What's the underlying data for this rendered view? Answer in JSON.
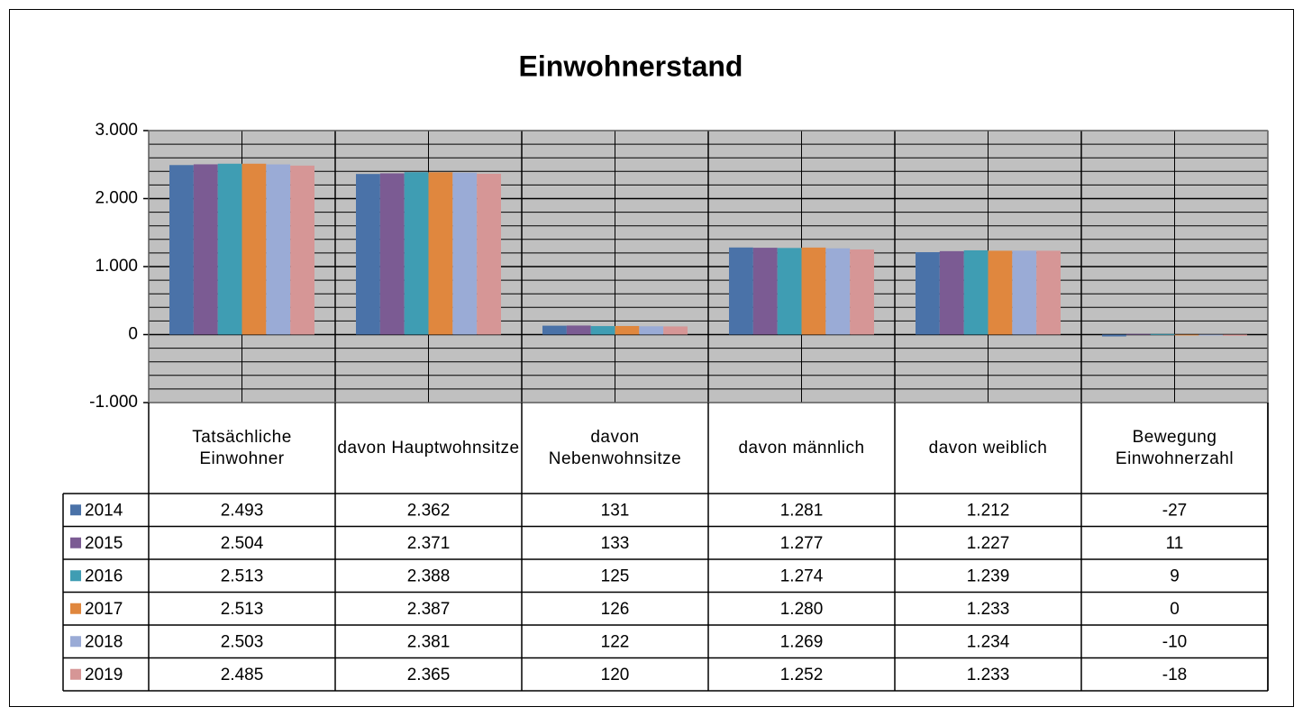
{
  "chart_data": {
    "type": "bar",
    "title": "Einwohnerstand",
    "categories": [
      "Tatsächliche Einwohner",
      "davon Hauptwohnsitze",
      "davon Nebenwohnsitze",
      "davon männlich",
      "davon weiblich",
      "Bewegung Einwohnerzahl"
    ],
    "series": [
      {
        "name": "2014",
        "color": "#4a72a8",
        "values": [
          2493,
          2362,
          131,
          1281,
          1212,
          -27
        ],
        "value_labels": [
          "2.493",
          "2.362",
          "131",
          "1.281",
          "1.212",
          "-27"
        ]
      },
      {
        "name": "2015",
        "color": "#7b5b93",
        "values": [
          2504,
          2371,
          133,
          1277,
          1227,
          11
        ],
        "value_labels": [
          "2.504",
          "2.371",
          "133",
          "1.277",
          "1.227",
          "11"
        ]
      },
      {
        "name": "2016",
        "color": "#3f9db3",
        "values": [
          2513,
          2388,
          125,
          1274,
          1239,
          9
        ],
        "value_labels": [
          "2.513",
          "2.388",
          "125",
          "1.274",
          "1.239",
          "9"
        ]
      },
      {
        "name": "2017",
        "color": "#e0873e",
        "values": [
          2513,
          2387,
          126,
          1280,
          1233,
          0
        ],
        "value_labels": [
          "2.513",
          "2.387",
          "126",
          "1.280",
          "1.233",
          "0"
        ]
      },
      {
        "name": "2018",
        "color": "#9aabd6",
        "values": [
          2503,
          2381,
          122,
          1269,
          1234,
          -10
        ],
        "value_labels": [
          "2.503",
          "2.381",
          "122",
          "1.269",
          "1.234",
          "-10"
        ]
      },
      {
        "name": "2019",
        "color": "#d69696",
        "values": [
          2485,
          2365,
          120,
          1252,
          1233,
          -18
        ],
        "value_labels": [
          "2.485",
          "2.365",
          "120",
          "1.252",
          "1.233",
          "-18"
        ]
      }
    ],
    "ylim": [
      -1000,
      3000
    ],
    "yticks": [
      {
        "value": -1000,
        "label": "-1.000"
      },
      0,
      {
        "value": 1000,
        "label": "1.000"
      },
      {
        "value": 2000,
        "label": "2.000"
      },
      {
        "value": 3000,
        "label": "3.000"
      }
    ],
    "grid": true,
    "minor_grid_per_major": 5,
    "data_table": true
  }
}
